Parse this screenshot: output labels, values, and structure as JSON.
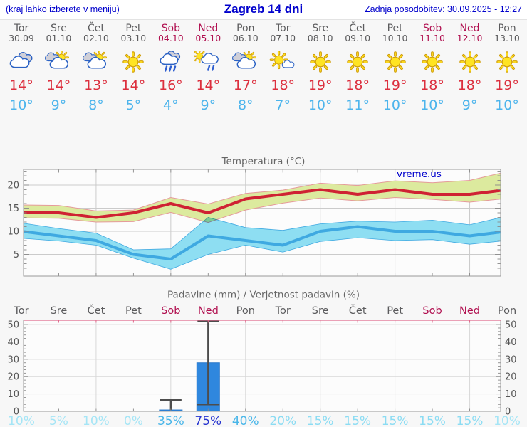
{
  "header": {
    "hint": "(kraj lahko izberete v meniju)",
    "title": "Zagreb 14 dni",
    "updated": "Zadnja posodobitev: 30.09.2025 - 12:27"
  },
  "watermark": "vreme.us",
  "colors": {
    "header_blue": "#0000cc",
    "weekday": "#5b5b5d",
    "weekend": "#b11050",
    "tmax_text": "#dc2f3e",
    "tmin_text": "#4cb4ec",
    "tmax_line": "#cf2233",
    "tmin_line": "#3fa9e1",
    "tmax_band": "#dcea9e",
    "tmax_band_edge": "#e59a9a",
    "tmin_band": "#8edef2",
    "bar_fill": "#2f87de",
    "bar_edge": "#2a77c9",
    "whisker": "#4d4d4d",
    "precip_top_axis": "#e0698c",
    "prob_low": "#a5e5f6",
    "prob_low2": "#8bdcf3",
    "prob_mid": "#49b6e9",
    "prob_high": "#2634cf",
    "grid": "#cbcbcb",
    "axis": "#9a9a9a",
    "tick": "#8a8a8a",
    "label": "#555555",
    "title": "#666666",
    "plot_bg": "#fcfcfc"
  },
  "forecast": {
    "days": [
      {
        "name": "Tor",
        "date": "30.09",
        "weekend": false,
        "icon": "cloudy",
        "tmax": "14°",
        "tmin": "10°",
        "prob": "10%"
      },
      {
        "name": "Sre",
        "date": "01.10",
        "weekend": false,
        "icon": "sun-cloud",
        "tmax": "14°",
        "tmin": "9°",
        "prob": "5%"
      },
      {
        "name": "Čet",
        "date": "02.10",
        "weekend": false,
        "icon": "sun-cloud",
        "tmax": "13°",
        "tmin": "8°",
        "prob": "10%"
      },
      {
        "name": "Pet",
        "date": "03.10",
        "weekend": false,
        "icon": "sunny",
        "tmax": "14°",
        "tmin": "5°",
        "prob": "0%"
      },
      {
        "name": "Sob",
        "date": "04.10",
        "weekend": true,
        "icon": "rain",
        "tmax": "16°",
        "tmin": "4°",
        "prob": "35%"
      },
      {
        "name": "Ned",
        "date": "05.10",
        "weekend": true,
        "icon": "sun-rain",
        "tmax": "14°",
        "tmin": "9°",
        "prob": "75%"
      },
      {
        "name": "Pon",
        "date": "06.10",
        "weekend": false,
        "icon": "sun-cloud",
        "tmax": "17°",
        "tmin": "8°",
        "prob": "40%"
      },
      {
        "name": "Tor",
        "date": "07.10",
        "weekend": false,
        "icon": "sun-small-cloud",
        "tmax": "18°",
        "tmin": "7°",
        "prob": "20%"
      },
      {
        "name": "Sre",
        "date": "08.10",
        "weekend": false,
        "icon": "sunny",
        "tmax": "19°",
        "tmin": "10°",
        "prob": "15%"
      },
      {
        "name": "Čet",
        "date": "09.10",
        "weekend": false,
        "icon": "sunny",
        "tmax": "18°",
        "tmin": "11°",
        "prob": "15%"
      },
      {
        "name": "Pet",
        "date": "10.10",
        "weekend": false,
        "icon": "sunny",
        "tmax": "19°",
        "tmin": "10°",
        "prob": "15%"
      },
      {
        "name": "Sob",
        "date": "11.10",
        "weekend": true,
        "icon": "sunny",
        "tmax": "18°",
        "tmin": "10°",
        "prob": "15%"
      },
      {
        "name": "Ned",
        "date": "12.10",
        "weekend": true,
        "icon": "sunny",
        "tmax": "18°",
        "tmin": "9°",
        "prob": "15%"
      },
      {
        "name": "Pon",
        "date": "13.10",
        "weekend": false,
        "icon": "sunny",
        "tmax": "19°",
        "tmin": "10°",
        "prob": "10%"
      }
    ]
  },
  "chart_data": [
    {
      "type": "line",
      "title": "Temperatura (°C)",
      "categories": [
        "Tor",
        "Sre",
        "Čet",
        "Pet",
        "Sob",
        "Ned",
        "Pon",
        "Tor",
        "Sre",
        "Čet",
        "Pet",
        "Sob",
        "Ned",
        "Pon"
      ],
      "ylim": [
        0.5,
        23.5
      ],
      "yticks": [
        5,
        10,
        15,
        20
      ],
      "grid": true,
      "watermark": "vreme.us",
      "series": [
        {
          "name": "tmax",
          "values": [
            14,
            14,
            13,
            14,
            16,
            14,
            17,
            18,
            19,
            18,
            19,
            18,
            18,
            19
          ]
        },
        {
          "name": "tmin",
          "values": [
            10,
            9,
            8,
            5,
            4,
            9,
            8,
            7,
            10,
            11,
            10,
            10,
            9,
            10
          ]
        },
        {
          "name": "tmax_range_upper",
          "values": [
            15.7,
            15.6,
            14.4,
            14.6,
            17.3,
            15.9,
            18.2,
            18.9,
            20.4,
            19.9,
            20.9,
            20.5,
            21.0,
            22.9
          ]
        },
        {
          "name": "tmax_range_lower",
          "values": [
            12.9,
            12.8,
            12.0,
            12.1,
            14.1,
            11.9,
            14.6,
            16.1,
            17.2,
            16.6,
            17.3,
            16.9,
            16.3,
            17.1
          ]
        },
        {
          "name": "tmin_range_upper",
          "values": [
            11.8,
            10.6,
            9.6,
            6.0,
            6.2,
            13.0,
            10.8,
            10.2,
            11.6,
            12.2,
            12.0,
            12.4,
            11.4,
            13.3
          ]
        },
        {
          "name": "tmin_range_lower",
          "values": [
            8.5,
            7.9,
            7.0,
            4.2,
            1.8,
            5.0,
            7.0,
            5.5,
            7.8,
            8.6,
            8.0,
            8.2,
            7.2,
            8.0
          ]
        }
      ]
    },
    {
      "type": "bar",
      "title": "Padavine (mm) / Verjetnost padavin (%)",
      "categories": [
        "Tor",
        "Sre",
        "Čet",
        "Pet",
        "Sob",
        "Ned",
        "Pon",
        "Tor",
        "Sre",
        "Čet",
        "Pet",
        "Sob",
        "Ned",
        "Pon"
      ],
      "values": [
        0,
        0,
        0,
        0,
        0.8,
        28,
        0,
        0,
        0,
        0,
        0,
        0,
        0,
        0
      ],
      "whiskers": [
        {
          "index": 4,
          "low": 0.8,
          "high": 6.6
        },
        {
          "index": 5,
          "low": 4,
          "high": 52
        }
      ],
      "probabilities_pct": [
        10,
        5,
        10,
        0,
        35,
        75,
        40,
        20,
        15,
        15,
        15,
        15,
        15,
        10
      ],
      "ylim": [
        0,
        52.5
      ],
      "yticks": [
        0,
        10,
        20,
        30,
        40,
        50
      ],
      "grid": true
    }
  ]
}
